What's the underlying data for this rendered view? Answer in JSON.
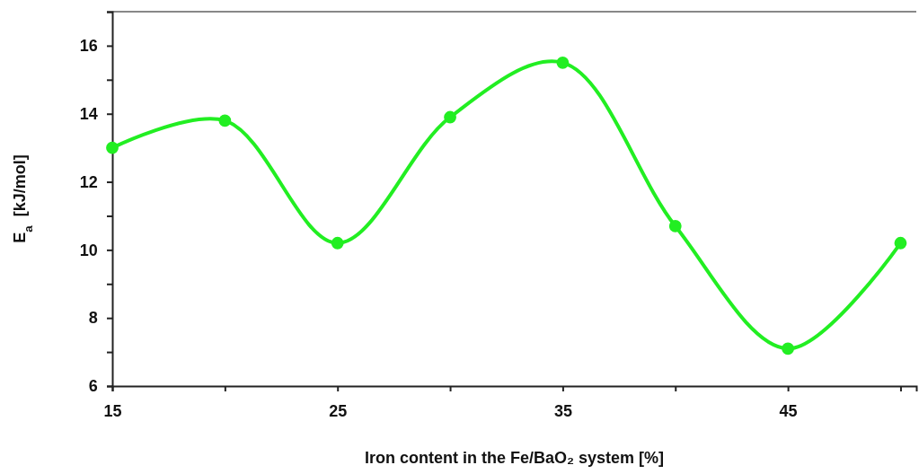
{
  "chart_data": {
    "type": "line",
    "xlabel": "Iron content in the Fe/BaO₂ system [%]",
    "ylabel": "E$_{a}$  [kJ/mol]",
    "x": [
      15,
      20,
      25,
      30,
      35,
      40,
      45,
      50
    ],
    "series": [
      {
        "color": "#22ee22",
        "values": [
          13.0,
          13.8,
          10.2,
          13.9,
          15.5,
          10.7,
          7.1,
          10.2
        ]
      }
    ],
    "xlim": [
      15,
      50.7
    ],
    "xticks": [
      15,
      {
        "value": 20,
        "label": null
      },
      25,
      {
        "value": 30,
        "label": null
      },
      35,
      {
        "value": 40,
        "label": null
      },
      45,
      {
        "value": 50,
        "label": null
      }
    ],
    "ylim": [
      6,
      17
    ],
    "yticks": [
      6,
      {
        "value": 7,
        "label": null
      },
      8,
      {
        "value": 9,
        "label": null
      },
      10,
      {
        "value": 11,
        "label": null
      },
      12,
      {
        "value": 13,
        "label": null
      },
      14,
      {
        "value": 15,
        "label": null
      },
      16,
      {
        "value": 17,
        "label": null
      }
    ],
    "grid": false,
    "marker": "circle",
    "line_style": "solid"
  }
}
